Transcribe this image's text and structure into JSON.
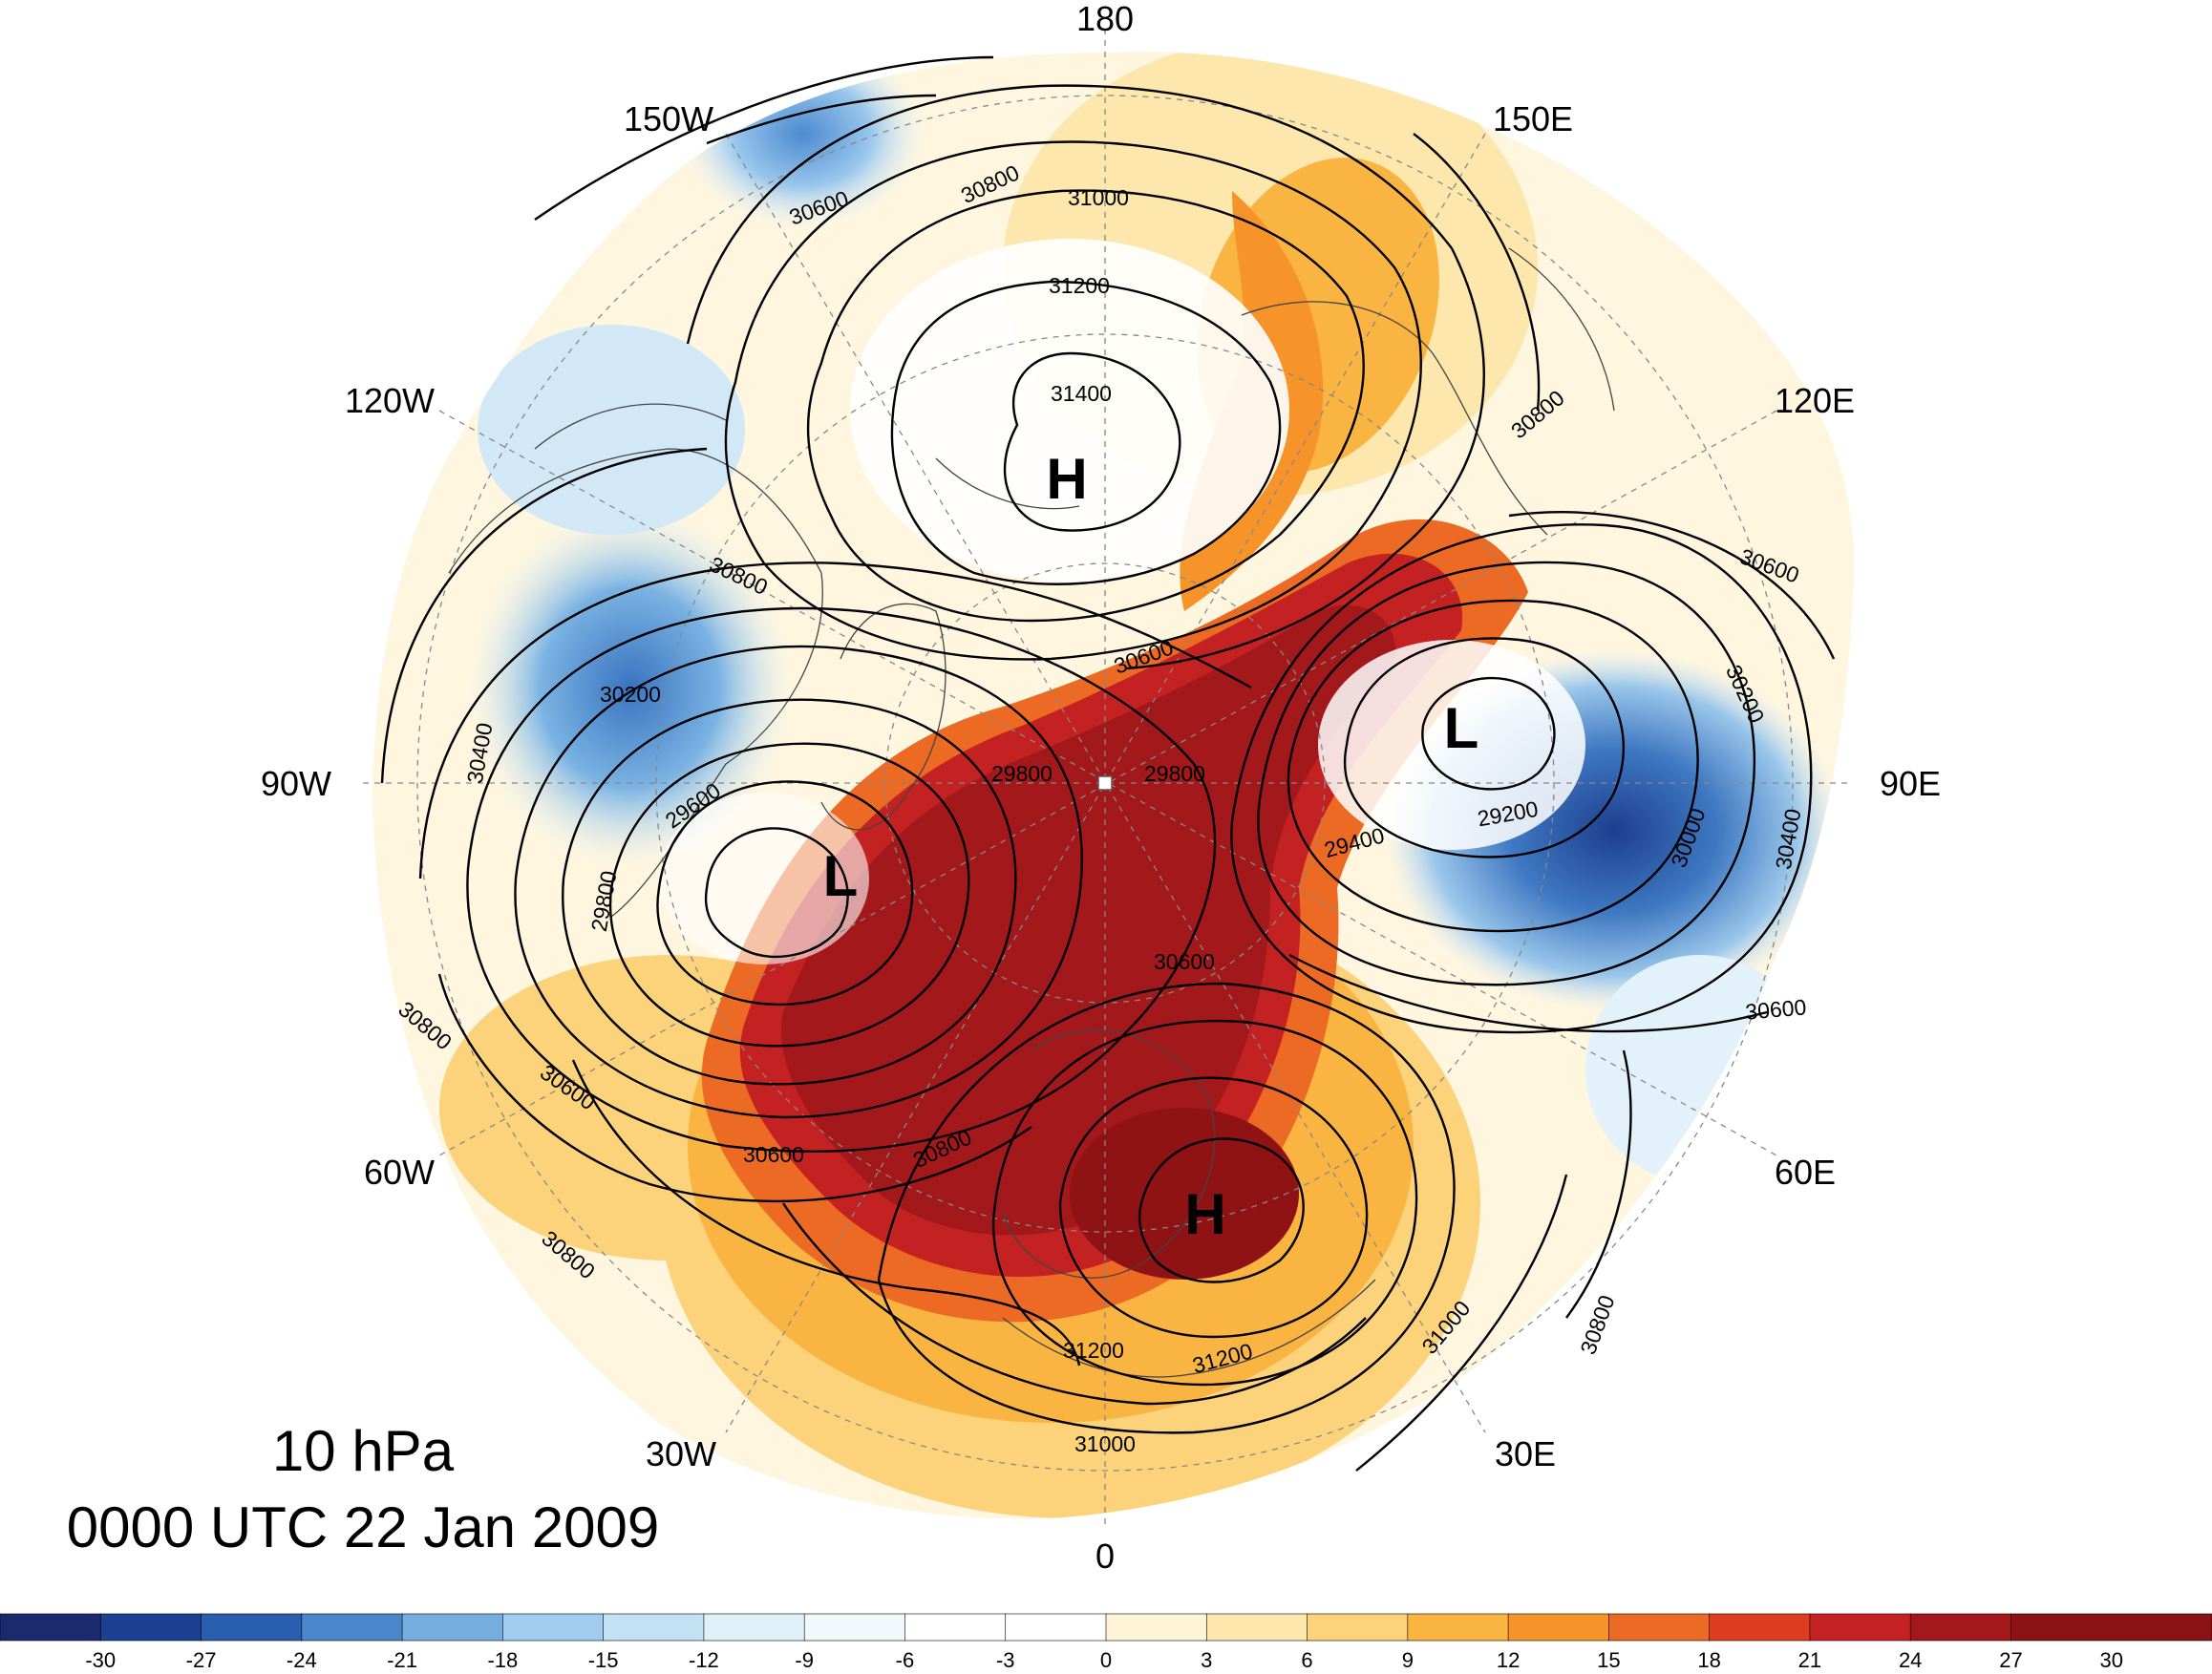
{
  "title": {
    "level": "10 hPa",
    "time": "0000 UTC 22 Jan 2009"
  },
  "longitude_labels": [
    "180",
    "150E",
    "120E",
    "90E",
    "60E",
    "30E",
    "0",
    "30W",
    "60W",
    "90W",
    "120W",
    "150W"
  ],
  "pressure_centers": [
    "H",
    "L",
    "H",
    "L"
  ],
  "contour_labels": [
    "31000",
    "31200",
    "31400",
    "30800",
    "30600",
    "30200",
    "30400",
    "29600",
    "29800",
    "29800",
    "29800",
    "29400",
    "29200",
    "30000",
    "30200",
    "30400",
    "30600",
    "30600",
    "30800",
    "30600",
    "30600",
    "30800",
    "31200",
    "31200",
    "31000",
    "31000",
    "30800",
    "30800",
    "30600",
    "30800",
    "30800",
    "30600"
  ],
  "colorbar": {
    "ticks": [
      "-30",
      "-27",
      "-24",
      "-21",
      "-18",
      "-15",
      "-12",
      "-9",
      "-6",
      "-3",
      "0",
      "3",
      "6",
      "9",
      "12",
      "15",
      "18",
      "21",
      "24",
      "27",
      "30"
    ],
    "colors": [
      "#1a2a6c",
      "#1d3f8f",
      "#2a5fb0",
      "#4a86cc",
      "#76aee0",
      "#a2cdee",
      "#c4e1f4",
      "#dff0f9",
      "#f1f8fc",
      "#ffffff",
      "#ffffff",
      "#fff3d8",
      "#fde7ad",
      "#fcd27a",
      "#f9b441",
      "#f6942a",
      "#ec6a23",
      "#dc3e1f",
      "#c42222",
      "#a3181b"
    ]
  },
  "colors": {
    "warm_max": "#a3181b",
    "cold_max": "#1d3f8f"
  }
}
